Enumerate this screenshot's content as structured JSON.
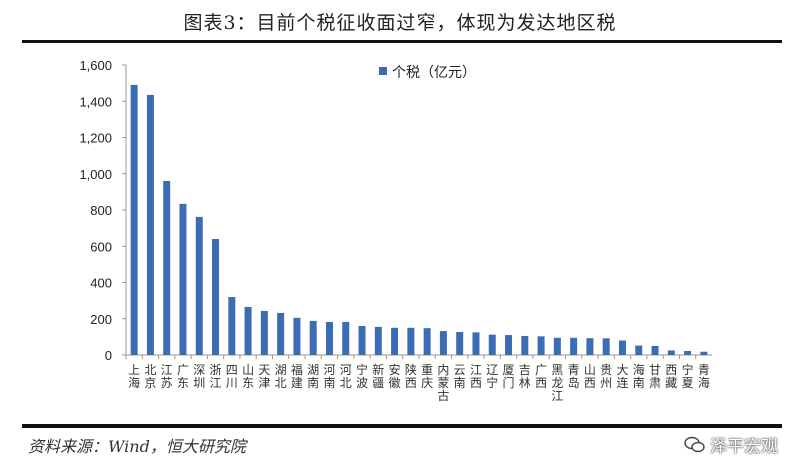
{
  "title": "图表3：目前个税征收面过窄，体现为发达地区税",
  "source": "资料来源：Wind，恒大研究院",
  "watermark": "泽平宏观",
  "colors": {
    "bar": "#3a6db4"
  },
  "chart_data": {
    "type": "bar",
    "title": "",
    "xlabel": "",
    "ylabel": "",
    "ylim": [
      0,
      1600
    ],
    "yticks": [
      0,
      200,
      400,
      600,
      800,
      1000,
      1200,
      1400,
      1600
    ],
    "ytick_labels": [
      "0",
      "200",
      "400",
      "600",
      "800",
      "1,000",
      "1,200",
      "1,400",
      "1,600"
    ],
    "grid": false,
    "legend": "top-right",
    "categories": [
      "上海",
      "北京",
      "江苏",
      "广东",
      "深圳",
      "浙江",
      "四川",
      "山东",
      "天津",
      "湖北",
      "福建",
      "湖南",
      "河南",
      "河北",
      "宁波",
      "新疆",
      "安徽",
      "陕西",
      "重庆",
      "内蒙古",
      "云南",
      "江西",
      "辽宁",
      "厦门",
      "吉林",
      "广西",
      "黑龙江",
      "青岛",
      "山西",
      "贵州",
      "大连",
      "海南",
      "甘肃",
      "西藏",
      "宁夏",
      "青海"
    ],
    "series": [
      {
        "name": "个税（亿元）",
        "values": [
          1490,
          1435,
          960,
          834,
          762,
          640,
          320,
          265,
          243,
          232,
          205,
          188,
          182,
          182,
          160,
          155,
          150,
          150,
          148,
          132,
          127,
          125,
          112,
          110,
          105,
          103,
          95,
          95,
          93,
          92,
          80,
          52,
          50,
          25,
          22,
          18
        ]
      }
    ]
  }
}
